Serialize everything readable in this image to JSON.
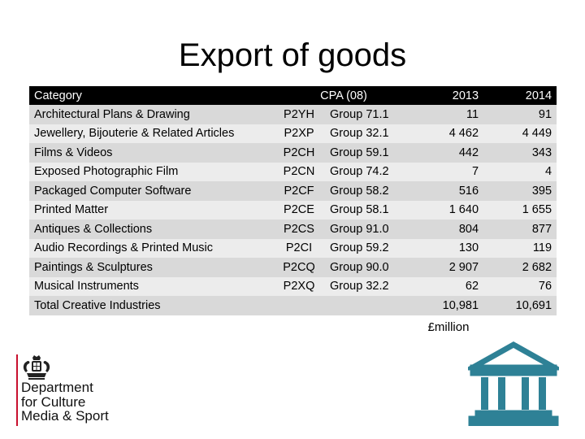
{
  "title": "Export of goods",
  "table": {
    "headers": {
      "category": "Category",
      "cpa": "CPA (08)",
      "y2013": "2013",
      "y2014": "2014"
    },
    "rows": [
      {
        "category": "Architectural Plans & Drawing",
        "code": "P2YH",
        "group": "Group 71.1",
        "y2013": "11",
        "y2014": "91"
      },
      {
        "category": "Jewellery, Bijouterie & Related Articles",
        "code": "P2XP",
        "group": "Group 32.1",
        "y2013": "4 462",
        "y2014": "4 449"
      },
      {
        "category": "Films & Videos",
        "code": "P2CH",
        "group": "Group 59.1",
        "y2013": "442",
        "y2014": "343"
      },
      {
        "category": "Exposed Photographic Film",
        "code": "P2CN",
        "group": "Group 74.2",
        "y2013": "7",
        "y2014": "4"
      },
      {
        "category": "Packaged Computer Software",
        "code": "P2CF",
        "group": "Group 58.2",
        "y2013": "516",
        "y2014": "395"
      },
      {
        "category": "Printed Matter",
        "code": "P2CE",
        "group": "Group 58.1",
        "y2013": "1 640",
        "y2014": "1 655"
      },
      {
        "category": "Antiques & Collections",
        "code": "P2CS",
        "group": "Group 91.0",
        "y2013": "804",
        "y2014": "877"
      },
      {
        "category": "Audio Recordings & Printed Music",
        "code": "P2CI",
        "group": "Group 59.2",
        "y2013": "130",
        "y2014": "119"
      },
      {
        "category": "Paintings & Sculptures",
        "code": "P2CQ",
        "group": "Group 90.0",
        "y2013": "2 907",
        "y2014": "2 682"
      },
      {
        "category": "Musical Instruments",
        "code": "P2XQ",
        "group": "Group 32.2",
        "y2013": "62",
        "y2014": "76"
      },
      {
        "category": "Total Creative Industries",
        "code": "",
        "group": "",
        "y2013": "10,981",
        "y2014": "10,691"
      }
    ]
  },
  "unit_label": "£million",
  "logo": {
    "line1": "Department",
    "line2": "for Culture",
    "line3": "Media & Sport",
    "icon": "royal-crest-icon",
    "accent": "#c8102e"
  },
  "building_icon": {
    "icon": "government-building-icon",
    "color": "#2e8196"
  }
}
